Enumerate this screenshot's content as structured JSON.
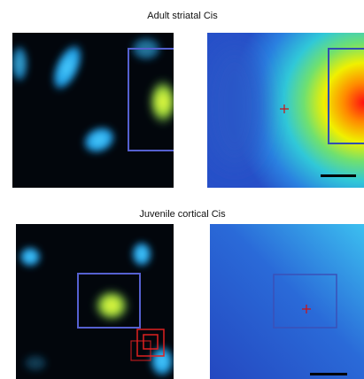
{
  "panels": [
    {
      "title": "Adult striatal Cis"
    },
    {
      "title": "Juvenile cortical Cis"
    }
  ]
}
